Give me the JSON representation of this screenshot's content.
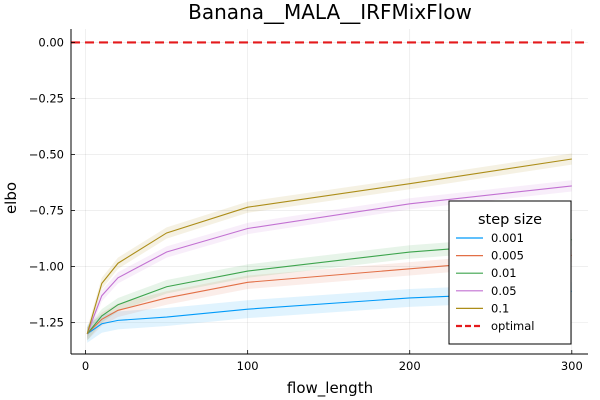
{
  "chart_data": {
    "type": "line",
    "title": "Banana__MALA__IRFMixFlow",
    "xlabel": "flow_length",
    "ylabel": "elbo",
    "xlim": [
      -9,
      310
    ],
    "ylim": [
      -1.39,
      0.06
    ],
    "x_ticks": [
      0,
      100,
      200,
      300
    ],
    "x_tick_labels": [
      "0",
      "100",
      "200",
      "300"
    ],
    "y_ticks": [
      0.0,
      -0.25,
      -0.5,
      -0.75,
      -1.0,
      -1.25
    ],
    "y_tick_labels": [
      "0.00",
      "−0.25",
      "−0.50",
      "−0.75",
      "−1.00",
      "−1.25"
    ],
    "grid": true,
    "legend": {
      "title": "step size",
      "placement": "bottom-right"
    },
    "x": [
      1,
      10,
      20,
      50,
      100,
      200,
      300
    ],
    "series": [
      {
        "name": "0.001",
        "color": "#009af9",
        "values": [
          -1.3,
          -1.255,
          -1.24,
          -1.225,
          -1.19,
          -1.14,
          -1.11
        ],
        "band": 0.04
      },
      {
        "name": "0.005",
        "color": "#e26f46",
        "values": [
          -1.3,
          -1.235,
          -1.195,
          -1.14,
          -1.07,
          -1.01,
          -0.95
        ],
        "band": 0.03
      },
      {
        "name": "0.01",
        "color": "#3da44d",
        "values": [
          -1.3,
          -1.22,
          -1.17,
          -1.09,
          -1.02,
          -0.935,
          -0.88
        ],
        "band": 0.03
      },
      {
        "name": "0.05",
        "color": "#c271d2",
        "values": [
          -1.3,
          -1.13,
          -1.05,
          -0.935,
          -0.83,
          -0.72,
          -0.64
        ],
        "band": 0.025
      },
      {
        "name": "0.1",
        "color": "#ac8d18",
        "values": [
          -1.3,
          -1.075,
          -0.985,
          -0.85,
          -0.735,
          -0.63,
          -0.52
        ],
        "band": 0.025
      }
    ],
    "reference_line": {
      "name": "optimal",
      "y": 0.0,
      "color": "#e41a1c",
      "style": "dashed"
    }
  }
}
